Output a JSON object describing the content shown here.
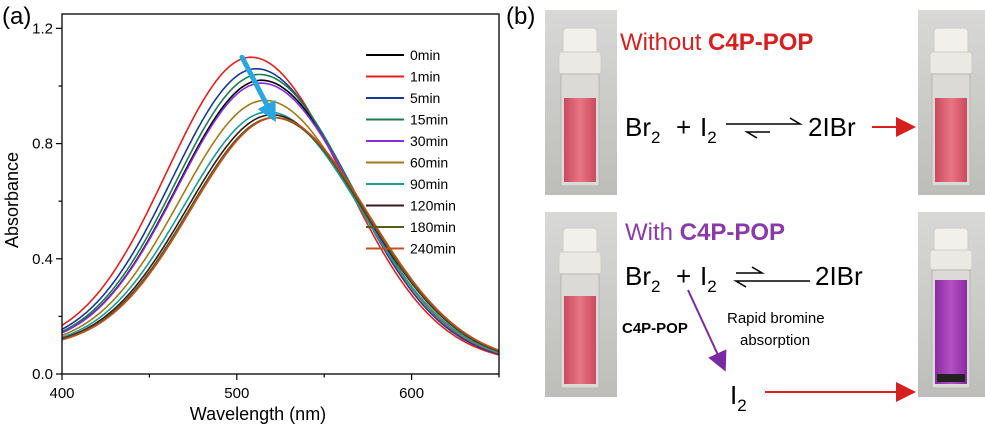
{
  "panels": {
    "a_label": "(a)",
    "b_label": "(b)"
  },
  "chart_data": {
    "type": "line",
    "xlabel": "Wavelength (nm)",
    "ylabel": "Absorbance",
    "xlim": [
      400,
      650
    ],
    "ylim": [
      0.0,
      1.25
    ],
    "xticks": [
      400,
      500,
      600
    ],
    "yticks": [
      0.0,
      0.4,
      0.8,
      1.2
    ],
    "yticks_labels": [
      "0.0",
      "0.4",
      "0.8",
      "1.2"
    ],
    "legend_position": "top-right",
    "series": [
      {
        "name": "0min",
        "color": "#000000",
        "peak_x": 514,
        "peak_y": 1.02
      },
      {
        "name": "1min",
        "color": "#e0201e",
        "peak_x": 508,
        "peak_y": 1.1
      },
      {
        "name": "5min",
        "color": "#1a3a8f",
        "peak_x": 511,
        "peak_y": 1.06
      },
      {
        "name": "15min",
        "color": "#1e7a52",
        "peak_x": 513,
        "peak_y": 1.04
      },
      {
        "name": "30min",
        "color": "#8a2be2",
        "peak_x": 514,
        "peak_y": 1.01
      },
      {
        "name": "60min",
        "color": "#a07a1a",
        "peak_x": 516,
        "peak_y": 0.95
      },
      {
        "name": "90min",
        "color": "#1a9a9a",
        "peak_x": 518,
        "peak_y": 0.91
      },
      {
        "name": "120min",
        "color": "#3a1a1a",
        "peak_x": 520,
        "peak_y": 0.9
      },
      {
        "name": "180min",
        "color": "#5a5a1a",
        "peak_x": 521,
        "peak_y": 0.89
      },
      {
        "name": "240min",
        "color": "#c0501e",
        "peak_x": 522,
        "peak_y": 0.89
      }
    ],
    "arrow": {
      "color": "#29a8e0",
      "from": [
        503,
        1.1
      ],
      "to": [
        521,
        0.89
      ]
    }
  },
  "scheme": {
    "top_caption_prefix": "Without ",
    "top_caption_bold": "C4P-POP",
    "bottom_caption_prefix": "With ",
    "bottom_caption_bold": "C4P-POP",
    "br2": "Br",
    "i2": "I",
    "sub2": "2",
    "plus": "+",
    "product": "2IBr",
    "reagent_label": "C4P-POP",
    "process_line1": "Rapid bromine",
    "process_line2": "absorption",
    "final_product": "I"
  },
  "colors": {
    "red_arrow": "#d62020",
    "purple_arrow": "#7a2aa0",
    "vial_red": "#e26474",
    "vial_purple": "#a23fb5"
  }
}
